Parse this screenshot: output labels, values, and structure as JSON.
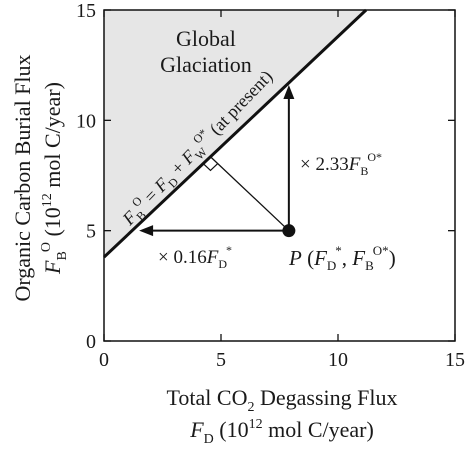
{
  "chart_data": {
    "type": "line",
    "xlabel": {
      "line1": "Total CO",
      "line1_sub": "2",
      "line1_rest": " Degassing Flux",
      "symbol": "F",
      "symbol_sub": "D",
      "unit_pre": " (10",
      "unit_exp": "12",
      "unit_post": " mol C/year)"
    },
    "ylabel": {
      "line1": "Organic Carbon Burial Flux",
      "symbol": "F",
      "symbol_sub": "B",
      "symbol_sup": "O",
      "unit_pre": "  (10",
      "unit_exp": "12",
      "unit_post": " mol C/year)"
    },
    "xlim": [
      0,
      15
    ],
    "ylim": [
      0,
      15
    ],
    "xticks": [
      "0",
      "5",
      "10",
      "15"
    ],
    "yticks": [
      "0",
      "5",
      "10",
      "15"
    ],
    "boundary_line": {
      "intercept": 3.8,
      "slope": 1.0,
      "label": {
        "symbol": "F",
        "sub_b": "B",
        "sup_o": "O",
        "eq": " = ",
        "fd": "F",
        "fd_sub": "D",
        "plus": " + ",
        "fw": "F",
        "fw_sub": "W",
        "fw_sup": "O*",
        "note": "  (at present)"
      }
    },
    "region": {
      "line1": "Global",
      "line2": "Glaciation",
      "fill": "#e6e6e6"
    },
    "point": {
      "x": 7.9,
      "y": 5.0,
      "label": {
        "name": "P",
        "open": " (",
        "fd": "F",
        "fd_sub": "D",
        "fd_sup": "*",
        "comma": ", ",
        "fb": "F",
        "fb_sub": "B",
        "fb_sup": "O*",
        "close": ")"
      }
    },
    "arrows": [
      {
        "direction": "up",
        "from": [
          7.9,
          5.0
        ],
        "to": [
          7.9,
          11.6
        ],
        "label": {
          "times": "× 2.33",
          "symbol": "F",
          "sub": "B",
          "sup": "O*"
        }
      },
      {
        "direction": "left",
        "from": [
          7.9,
          5.0
        ],
        "to": [
          1.5,
          5.0
        ],
        "label": {
          "times": "× 0.16",
          "symbol": "F",
          "sub": "D",
          "sup": "*"
        }
      }
    ],
    "colors": {
      "line": "#111111",
      "fill": "#e6e6e6"
    }
  }
}
